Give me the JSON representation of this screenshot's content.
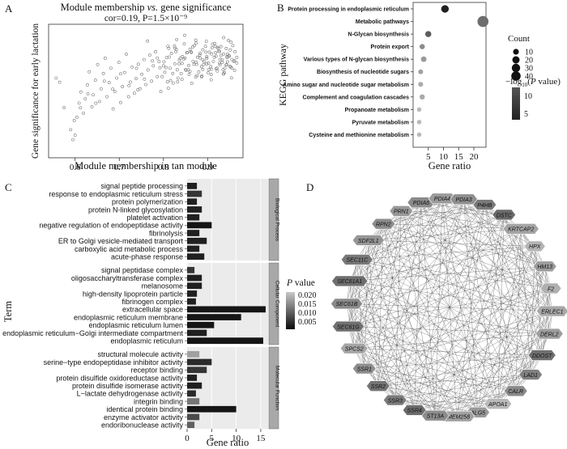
{
  "panels": {
    "a": "A",
    "b": "B",
    "c": "C",
    "d": "D"
  },
  "chart_data": [
    {
      "type": "scatter",
      "title": "Module membership vs. gene significance",
      "title_prefix": "Module membership ",
      "title_italic": "vs.",
      "title_suffix": " gene significance",
      "subtitle": "cor=0.19, P=1.5×10⁻⁹",
      "xlabel": "Module membership in tan module",
      "ylabel": "Gene significance for early lactation",
      "xlim": [
        0.54,
        0.98
      ],
      "ylim": [
        0.0,
        0.7
      ],
      "xticks": [
        0.6,
        0.7,
        0.8,
        0.9
      ],
      "x": [
        0.557,
        0.565,
        0.575,
        0.59,
        0.595,
        0.6,
        0.604,
        0.609,
        0.613,
        0.619,
        0.623,
        0.628,
        0.632,
        0.638,
        0.641,
        0.646,
        0.651,
        0.655,
        0.659,
        0.664,
        0.668,
        0.672,
        0.677,
        0.681,
        0.686,
        0.69,
        0.694,
        0.699,
        0.703,
        0.707,
        0.712,
        0.716,
        0.721,
        0.725,
        0.729,
        0.734,
        0.738,
        0.743,
        0.747,
        0.751,
        0.756,
        0.76,
        0.765,
        0.769,
        0.773,
        0.777,
        0.782,
        0.786,
        0.79,
        0.794,
        0.797,
        0.801,
        0.803,
        0.807,
        0.811,
        0.815,
        0.818,
        0.822,
        0.826,
        0.829,
        0.833,
        0.836,
        0.84,
        0.843,
        0.847,
        0.85,
        0.853,
        0.857,
        0.86,
        0.864,
        0.867,
        0.87,
        0.873,
        0.877,
        0.88,
        0.883,
        0.886,
        0.889,
        0.892,
        0.895,
        0.898,
        0.901,
        0.904,
        0.907,
        0.91,
        0.913,
        0.916,
        0.919,
        0.922,
        0.925,
        0.928,
        0.93,
        0.933,
        0.936,
        0.939,
        0.942,
        0.945,
        0.948,
        0.951,
        0.806,
        0.813,
        0.821,
        0.828,
        0.835,
        0.842,
        0.849,
        0.856,
        0.862,
        0.869,
        0.876,
        0.883,
        0.889,
        0.896,
        0.902,
        0.908,
        0.915,
        0.921,
        0.927,
        0.933,
        0.938,
        0.944,
        0.95,
        0.955,
        0.961,
        0.966,
        0.8,
        0.816,
        0.831,
        0.846,
        0.86,
        0.874,
        0.886,
        0.898,
        0.909,
        0.919,
        0.928,
        0.936,
        0.943,
        0.949,
        0.955,
        0.961,
        0.825,
        0.838,
        0.851,
        0.863,
        0.875,
        0.887,
        0.898,
        0.908,
        0.918,
        0.927,
        0.936,
        0.944,
        0.952,
        0.959,
        0.812,
        0.83,
        0.848,
        0.866,
        0.882,
        0.897,
        0.911,
        0.924,
        0.936,
        0.947,
        0.957,
        0.966,
        0.598,
        0.612,
        0.629,
        0.647,
        0.666,
        0.685,
        0.703,
        0.722,
        0.739,
        0.757,
        0.775,
        0.792,
        0.809,
        0.826,
        0.842,
        0.858,
        0.874,
        0.889,
        0.903,
        0.917,
        0.93,
        0.942,
        0.953,
        0.962,
        0.742,
        0.764,
        0.786,
        0.81,
        0.832,
        0.854,
        0.873,
        0.891,
        0.908,
        0.922,
        0.935,
        0.945,
        0.954
      ],
      "y": [
        0.418,
        0.396,
        0.263,
        0.147,
        0.095,
        0.118,
        0.212,
        0.287,
        0.345,
        0.234,
        0.309,
        0.382,
        0.451,
        0.267,
        0.33,
        0.407,
        0.489,
        0.295,
        0.361,
        0.442,
        0.522,
        0.32,
        0.394,
        0.47,
        0.256,
        0.347,
        0.418,
        0.5,
        0.29,
        0.373,
        0.447,
        0.543,
        0.32,
        0.397,
        0.475,
        0.338,
        0.415,
        0.491,
        0.362,
        0.438,
        0.515,
        0.384,
        0.46,
        0.538,
        0.402,
        0.482,
        0.556,
        0.425,
        0.504,
        0.347,
        0.425,
        0.503,
        0.448,
        0.525,
        0.365,
        0.47,
        0.547,
        0.392,
        0.492,
        0.568,
        0.418,
        0.512,
        0.441,
        0.531,
        0.597,
        0.462,
        0.551,
        0.484,
        0.569,
        0.39,
        0.506,
        0.588,
        0.423,
        0.527,
        0.45,
        0.547,
        0.478,
        0.566,
        0.505,
        0.585,
        0.53,
        0.446,
        0.554,
        0.478,
        0.577,
        0.505,
        0.599,
        0.533,
        0.455,
        0.559,
        0.487,
        0.583,
        0.514,
        0.544,
        0.47,
        0.573,
        0.503,
        0.535,
        0.565,
        0.473,
        0.528,
        0.442,
        0.555,
        0.492,
        0.411,
        0.523,
        0.461,
        0.556,
        0.49,
        0.431,
        0.523,
        0.463,
        0.554,
        0.496,
        0.437,
        0.527,
        0.47,
        0.558,
        0.5,
        0.447,
        0.531,
        0.48,
        0.515,
        0.458,
        0.497,
        0.482,
        0.405,
        0.461,
        0.518,
        0.453,
        0.501,
        0.424,
        0.492,
        0.544,
        0.466,
        0.516,
        0.439,
        0.488,
        0.533,
        0.47,
        0.508,
        0.586,
        0.522,
        0.459,
        0.552,
        0.49,
        0.429,
        0.521,
        0.464,
        0.551,
        0.496,
        0.44,
        0.526,
        0.476,
        0.506,
        0.574,
        0.62,
        0.642,
        0.581,
        0.538,
        0.611,
        0.596,
        0.574,
        0.63,
        0.615,
        0.588,
        0.526,
        0.195,
        0.262,
        0.335,
        0.286,
        0.402,
        0.36,
        0.44,
        0.378,
        0.469,
        0.412,
        0.508,
        0.472,
        0.398,
        0.575,
        0.495,
        0.437,
        0.601,
        0.514,
        0.463,
        0.584,
        0.537,
        0.487,
        0.606,
        0.556,
        0.356,
        0.612,
        0.523,
        0.585,
        0.398,
        0.552,
        0.617,
        0.489,
        0.409,
        0.579,
        0.462,
        0.544,
        0.419
      ]
    },
    {
      "type": "scatter",
      "subtype": "dot-plot",
      "xlabel": "Gene ratio",
      "ylabel": "KEGG pathway",
      "xlim": [
        0,
        24
      ],
      "xticks": [
        5,
        10,
        15,
        20
      ],
      "categories": [
        "Protein processing in endoplasmic reticulum",
        "Metabolic pathways",
        "N-Glycan biosynthesis",
        "Protein export",
        "Various types of N-glycan biosynthesis",
        "Biosynthesis of nucleotide sugars",
        "Amino sugar and nucleotide sugar metabolism",
        "Complement and coagulation cascades",
        "Propanoate metabolism",
        "Pyruvate metabolism",
        "Cysteine and methionine metabolism"
      ],
      "gene_ratio": [
        10.5,
        23,
        5,
        3,
        3.5,
        2.5,
        2.5,
        3,
        2,
        2,
        2
      ],
      "count": [
        14,
        40,
        7,
        4,
        5,
        3,
        3,
        4,
        2,
        2,
        2
      ],
      "neg_log10_p": [
        13,
        8,
        9,
        6,
        5,
        4.5,
        4,
        4,
        3,
        3,
        3
      ],
      "legend": {
        "size_title": "Count",
        "size_values": [
          10,
          20,
          30,
          40
        ],
        "color_title_prefix": "−log",
        "color_title_sub": "10",
        "color_title_open": "(",
        "color_title_italic": "P",
        "color_title_suffix": " value)",
        "color_ticks": [
          10,
          5
        ]
      },
      "color_low": "#111111",
      "color_high": "#c8c8c8"
    },
    {
      "type": "bar",
      "orientation": "horizontal",
      "xlabel": "Gene ratio",
      "ylabel": "Term",
      "xlim": [
        0,
        16.5
      ],
      "xticks": [
        0,
        5,
        10,
        15
      ],
      "facets": [
        {
          "name": "Biological Process",
          "categories": [
            "signal peptide processing",
            "response to endoplasmic reticulum stress",
            "protein polymerization",
            "protein N-linked glycosylation",
            "platelet activation",
            "negative regulation of endopeptidase activity",
            "fibrinolysis",
            "ER to Golgi vesicle-mediated transport",
            "carboxylic acid metabolic process",
            "acute-phase response"
          ],
          "values": [
            2.0,
            3.0,
            2.0,
            3.0,
            2.5,
            5.0,
            2.5,
            4.0,
            2.5,
            3.5
          ],
          "p": [
            0.002,
            0.004,
            0.002,
            0.002,
            0.002,
            0.001,
            0.002,
            0.002,
            0.002,
            0.002
          ]
        },
        {
          "name": "Cellular Component",
          "categories": [
            "signal peptidase complex",
            "oligosaccharyltransferase complex",
            "melanosome",
            "high-density lipoprotein particle",
            "fibrinogen complex",
            "extracellular space",
            "endoplasmic reticulum membrane",
            "endoplasmic reticulum lumen",
            "endoplasmic reticulum−Golgi intermediate compartment",
            "endoplasmic reticulum"
          ],
          "values": [
            1.5,
            3.0,
            3.0,
            2.0,
            1.8,
            16.0,
            11.0,
            5.5,
            4.0,
            15.5
          ],
          "p": [
            0.004,
            0.002,
            0.002,
            0.002,
            0.002,
            0.001,
            0.001,
            0.001,
            0.002,
            0.001
          ]
        },
        {
          "name": "Molecular Function",
          "categories": [
            "structural molecule activity",
            "serine−type endopeptidase inhibitor activity",
            "receptor binding",
            "protein disulfide oxidoreductase activity",
            "protein disulfide isomerase activity",
            "L−lactate dehydrogenase activity",
            "integrin binding",
            "identical protein binding",
            "enzyme activator activity",
            "endoribonuclease activity"
          ],
          "values": [
            2.5,
            5.0,
            4.0,
            2.0,
            3.0,
            1.8,
            2.5,
            10.0,
            2.5,
            1.5
          ],
          "p": [
            0.014,
            0.003,
            0.004,
            0.002,
            0.002,
            0.003,
            0.01,
            0.001,
            0.006,
            0.008
          ]
        }
      ],
      "legend": {
        "title_italic": "P",
        "title_suffix": " value",
        "ticks": [
          "0.020",
          "0.015",
          "0.010",
          "0.005"
        ],
        "range": [
          0.0,
          0.022
        ]
      },
      "color_low": "#0a0a0a",
      "color_high": "#c8c8c8"
    }
  ],
  "network": {
    "type": "network",
    "nodes": [
      "PDIA6",
      "PDIA4",
      "PDIA3",
      "P4HB",
      "DSTC",
      "KRTCAP2",
      "HPX",
      "HM13",
      "F2",
      "ERLEC1",
      "DERL2",
      "DDOST",
      "LAD1",
      "CALR",
      "APOA1",
      "ALG5",
      "TMEM258",
      "ST13A",
      "SSR4",
      "SSR3",
      "SSR2",
      "SSR1",
      "SPCS2",
      "SEC61G",
      "SEC61B",
      "SEC61A1",
      "SEC11C",
      "SDF2L1",
      "RPN2",
      "PRN1"
    ],
    "shades": [
      "#8a8a8a",
      "#9a9a9a",
      "#8f8f8f",
      "#7a7a7a",
      "#6a6a6a",
      "#a5a5a5",
      "#b4b4b4",
      "#9c9c9c",
      "#b0b0b0",
      "#a8a8a8",
      "#9e9e9e",
      "#6f6f6f",
      "#808080",
      "#8a8a8a",
      "#b8b8b8",
      "#9a9a9a",
      "#a2a2a2",
      "#8c8c8c",
      "#6c6c6c",
      "#7c7c7c",
      "#747474",
      "#8e8e8e",
      "#a6a6a6",
      "#707070",
      "#8a8a8a",
      "#6e6e6e",
      "#787878",
      "#969696",
      "#8c8c8c",
      "#999999"
    ]
  }
}
